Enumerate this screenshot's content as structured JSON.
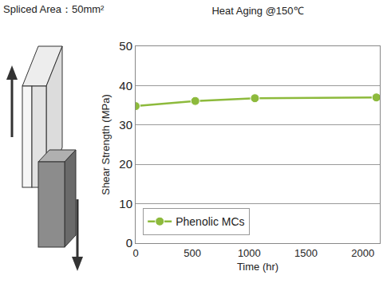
{
  "chart_data": {
    "type": "line",
    "title": "Heat Aging @150℃",
    "x_label": "Time (hr)",
    "y_label": "Shear Strength (MPa)",
    "annotations": [
      "Spliced Area：50mm²"
    ],
    "x": [
      0,
      525,
      1050,
      2120
    ],
    "series": [
      {
        "name": "Phenolic MCs",
        "color": "#8dba3c",
        "marker": "circle",
        "values": [
          34.8,
          36.1,
          36.8,
          37.0
        ]
      }
    ],
    "xlim": [
      0,
      2150
    ],
    "xticks": [
      0,
      500,
      1000,
      1500,
      2000
    ],
    "ylim": [
      0,
      50
    ],
    "yticks": [
      0,
      10,
      20,
      30,
      40,
      50
    ],
    "grid": true,
    "legend": "lower left"
  }
}
